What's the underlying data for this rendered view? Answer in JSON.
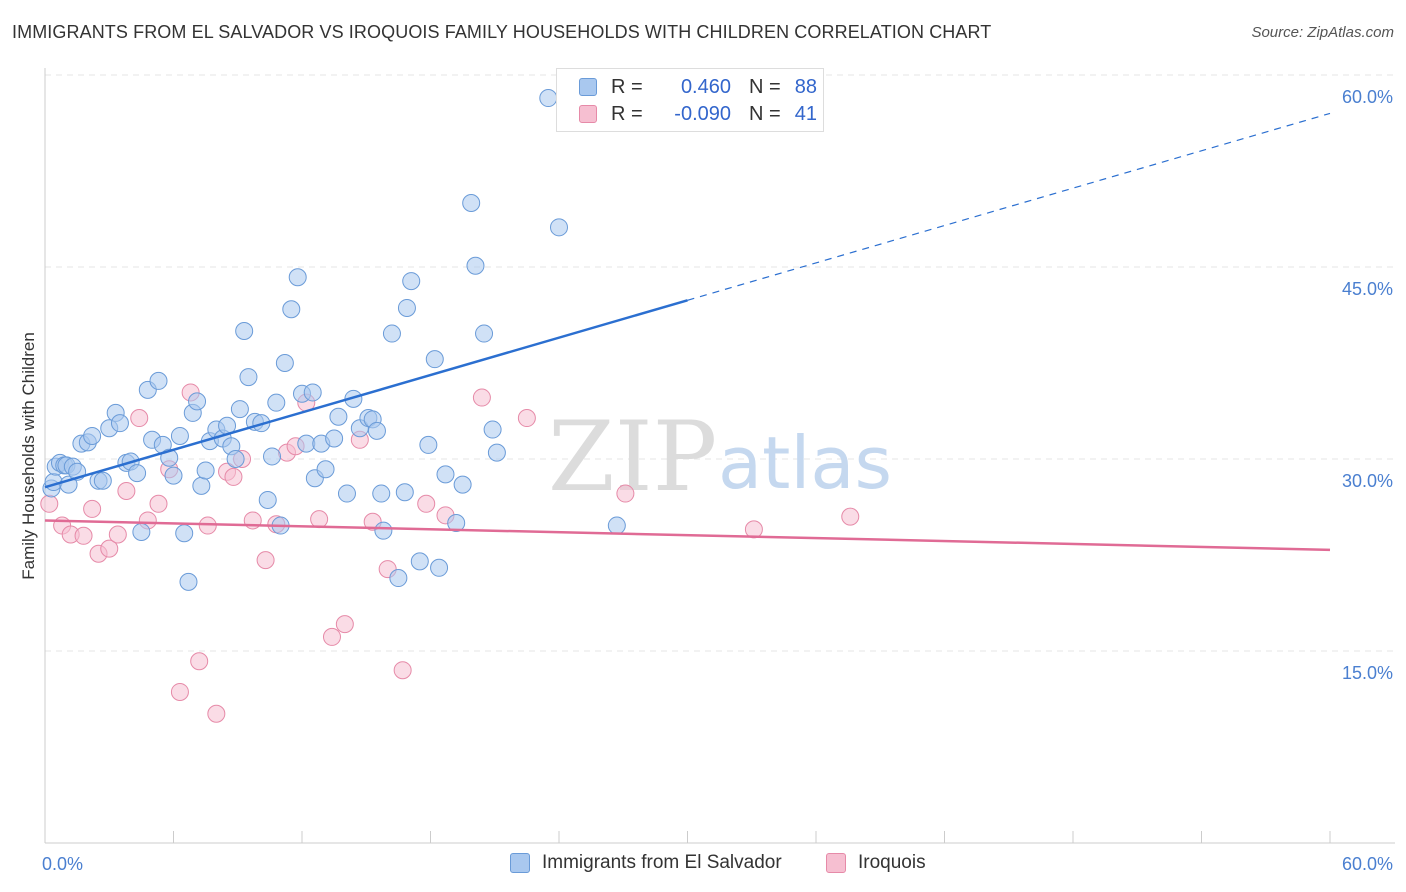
{
  "title": "IMMIGRANTS FROM EL SALVADOR VS IROQUOIS FAMILY HOUSEHOLDS WITH CHILDREN CORRELATION CHART",
  "source": "Source: ZipAtlas.com",
  "watermark": {
    "part1": "ZIP",
    "part2": "atlas"
  },
  "colors": {
    "blue_fill": "#a9c8ef",
    "blue_stroke": "#6a9bd8",
    "blue_line": "#2b6fd0",
    "pink_fill": "#f6bfd1",
    "pink_stroke": "#e68aa8",
    "pink_line": "#e06b95",
    "tick_text": "#4a7fd0",
    "grid": "#e4e4e4"
  },
  "legend": {
    "rows": [
      {
        "r_label": "R =",
        "r_value": "0.460",
        "n_label": "N =",
        "n_value": "88"
      },
      {
        "r_label": "R =",
        "r_value": "-0.090",
        "n_label": "N =",
        "n_value": "41"
      }
    ]
  },
  "chart_data": {
    "type": "scatter",
    "xlabel": "",
    "ylabel": "Family Households with Children",
    "xlim": [
      0,
      60
    ],
    "ylim": [
      0,
      60
    ],
    "x_tick_labels": [
      "0.0%",
      "60.0%"
    ],
    "y_ticks": [
      15,
      30,
      45,
      60
    ],
    "y_tick_labels": [
      "15.0%",
      "30.0%",
      "45.0%",
      "60.0%"
    ],
    "grid": true,
    "legend_position": "bottom",
    "series": [
      {
        "name": "Immigrants from El Salvador",
        "color": "#a9c8ef",
        "points": [
          [
            0.3,
            27.7
          ],
          [
            0.4,
            28.2
          ],
          [
            0.5,
            29.4
          ],
          [
            0.7,
            29.7
          ],
          [
            0.9,
            29.5
          ],
          [
            1.0,
            29.5
          ],
          [
            1.1,
            28.0
          ],
          [
            1.3,
            29.4
          ],
          [
            1.5,
            29.0
          ],
          [
            1.7,
            31.2
          ],
          [
            2.0,
            31.3
          ],
          [
            2.2,
            31.8
          ],
          [
            2.5,
            28.3
          ],
          [
            2.7,
            28.3
          ],
          [
            3.0,
            32.4
          ],
          [
            3.3,
            33.6
          ],
          [
            3.5,
            32.8
          ],
          [
            3.8,
            29.7
          ],
          [
            4.0,
            29.8
          ],
          [
            4.3,
            28.9
          ],
          [
            4.5,
            24.3
          ],
          [
            4.8,
            35.4
          ],
          [
            5.0,
            31.5
          ],
          [
            5.3,
            36.1
          ],
          [
            5.5,
            31.1
          ],
          [
            5.8,
            30.1
          ],
          [
            6.0,
            28.7
          ],
          [
            6.3,
            31.8
          ],
          [
            6.5,
            24.2
          ],
          [
            6.7,
            20.4
          ],
          [
            6.9,
            33.6
          ],
          [
            7.1,
            34.5
          ],
          [
            7.3,
            27.9
          ],
          [
            7.5,
            29.1
          ],
          [
            7.7,
            31.4
          ],
          [
            8.0,
            32.3
          ],
          [
            8.3,
            31.6
          ],
          [
            8.5,
            32.6
          ],
          [
            8.7,
            31.0
          ],
          [
            8.9,
            30.0
          ],
          [
            9.1,
            33.9
          ],
          [
            9.3,
            40.0
          ],
          [
            9.5,
            36.4
          ],
          [
            9.8,
            32.9
          ],
          [
            10.1,
            32.8
          ],
          [
            10.4,
            26.8
          ],
          [
            10.6,
            30.2
          ],
          [
            10.8,
            34.4
          ],
          [
            11.0,
            24.8
          ],
          [
            11.2,
            37.5
          ],
          [
            11.5,
            41.7
          ],
          [
            11.8,
            44.2
          ],
          [
            12.0,
            35.1
          ],
          [
            12.2,
            31.2
          ],
          [
            12.5,
            35.2
          ],
          [
            12.6,
            28.5
          ],
          [
            12.9,
            31.2
          ],
          [
            13.1,
            29.2
          ],
          [
            13.5,
            31.6
          ],
          [
            13.7,
            33.3
          ],
          [
            14.1,
            27.3
          ],
          [
            14.4,
            34.7
          ],
          [
            14.7,
            32.4
          ],
          [
            15.1,
            33.2
          ],
          [
            15.3,
            33.1
          ],
          [
            15.5,
            32.2
          ],
          [
            15.7,
            27.3
          ],
          [
            15.8,
            24.4
          ],
          [
            16.2,
            39.8
          ],
          [
            16.5,
            20.7
          ],
          [
            16.8,
            27.4
          ],
          [
            16.9,
            41.8
          ],
          [
            17.1,
            43.9
          ],
          [
            17.5,
            22.0
          ],
          [
            17.9,
            31.1
          ],
          [
            18.2,
            37.8
          ],
          [
            18.4,
            21.5
          ],
          [
            18.7,
            28.8
          ],
          [
            19.2,
            25.0
          ],
          [
            19.5,
            28.0
          ],
          [
            19.9,
            50.0
          ],
          [
            20.1,
            45.1
          ],
          [
            20.5,
            39.8
          ],
          [
            20.9,
            32.3
          ],
          [
            21.1,
            30.5
          ],
          [
            23.5,
            58.2
          ],
          [
            24.0,
            48.1
          ],
          [
            26.7,
            24.8
          ]
        ]
      },
      {
        "name": "Iroquois",
        "color": "#f6bfd1",
        "points": [
          [
            0.2,
            26.5
          ],
          [
            0.8,
            24.8
          ],
          [
            1.2,
            24.1
          ],
          [
            1.8,
            24.0
          ],
          [
            2.2,
            26.1
          ],
          [
            2.5,
            22.6
          ],
          [
            3.0,
            23.0
          ],
          [
            3.4,
            24.1
          ],
          [
            3.8,
            27.5
          ],
          [
            4.4,
            33.2
          ],
          [
            4.8,
            25.2
          ],
          [
            5.3,
            26.5
          ],
          [
            5.8,
            29.2
          ],
          [
            6.3,
            11.8
          ],
          [
            6.8,
            35.2
          ],
          [
            7.2,
            14.2
          ],
          [
            7.6,
            24.8
          ],
          [
            8.0,
            10.1
          ],
          [
            8.5,
            29.0
          ],
          [
            8.8,
            28.6
          ],
          [
            9.2,
            30.0
          ],
          [
            9.7,
            25.2
          ],
          [
            10.3,
            22.1
          ],
          [
            10.8,
            24.9
          ],
          [
            11.3,
            30.5
          ],
          [
            11.7,
            31.0
          ],
          [
            12.2,
            34.4
          ],
          [
            12.8,
            25.3
          ],
          [
            13.4,
            16.1
          ],
          [
            14.0,
            17.1
          ],
          [
            14.7,
            31.5
          ],
          [
            15.3,
            25.1
          ],
          [
            16.0,
            21.4
          ],
          [
            16.7,
            13.5
          ],
          [
            17.8,
            26.5
          ],
          [
            18.7,
            25.6
          ],
          [
            20.4,
            34.8
          ],
          [
            22.5,
            33.2
          ],
          [
            27.1,
            27.3
          ],
          [
            33.1,
            24.5
          ],
          [
            37.6,
            25.5
          ]
        ]
      }
    ],
    "trend_lines": [
      {
        "series": "Immigrants from El Salvador",
        "x_start": 0.0,
        "y_start": 27.8,
        "x_solid_end": 30.0,
        "y_solid_end": 42.4,
        "x_dash_end": 60.0,
        "y_dash_end": 57.0
      },
      {
        "series": "Iroquois",
        "x_start": 0.0,
        "y_start": 25.2,
        "x_end": 60.0,
        "y_end": 22.9
      }
    ]
  }
}
